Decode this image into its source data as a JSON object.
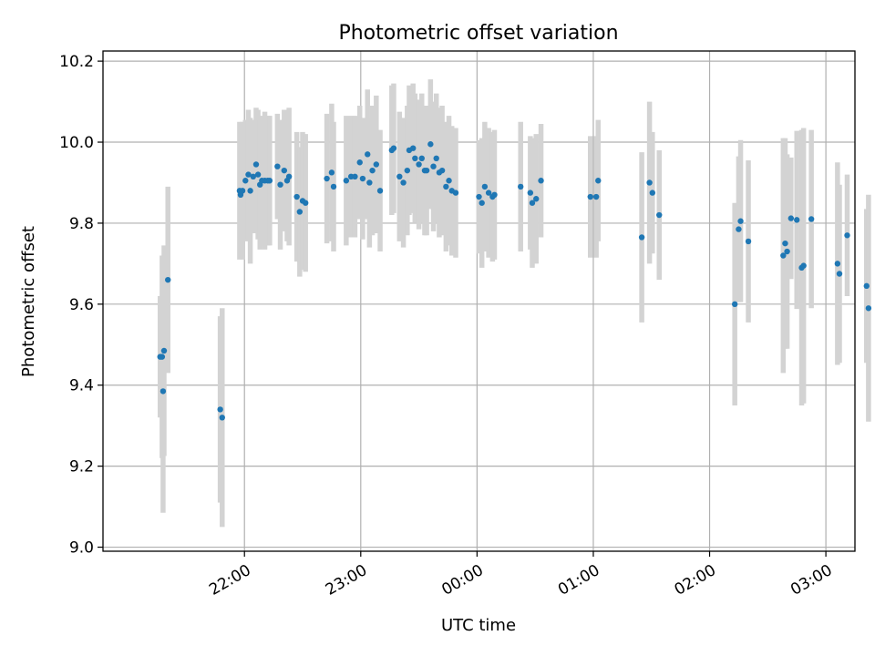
{
  "chart_data": {
    "type": "scatter",
    "title": "Photometric offset variation",
    "xlabel": "UTC time",
    "ylabel": "Photometric offset",
    "x_unit": "minutes after 21:00 UTC",
    "xlim": [
      -13,
      375
    ],
    "ylim": [
      8.99,
      10.225
    ],
    "yticks": [
      9.0,
      9.2,
      9.4,
      9.6,
      9.8,
      10.0,
      10.2
    ],
    "ytick_labels": [
      "9.0",
      "9.2",
      "9.4",
      "9.6",
      "9.8",
      "10.0",
      "10.2"
    ],
    "xticks": [
      60,
      120,
      180,
      240,
      300,
      360
    ],
    "xtick_labels": [
      "22:00",
      "23:00",
      "00:00",
      "01:00",
      "02:00",
      "03:00"
    ],
    "grid": true,
    "colors": {
      "points": "#1f77b4",
      "errorbars": "#d3d3d3",
      "grid": "#b0b0b0"
    },
    "series": [
      {
        "x": [
          16.5,
          18,
          18.5,
          20.5,
          17.5,
          47.5,
          48.5,
          57.5,
          58,
          59,
          60.5,
          62,
          63,
          64.5,
          66,
          67,
          68,
          69,
          70.5,
          72,
          73,
          77,
          78.5,
          80.5,
          82,
          83,
          87,
          88.5,
          90,
          91.5,
          102.5,
          105,
          106,
          112.5,
          115,
          117,
          119.5,
          121,
          123.5,
          124.5,
          126,
          128,
          130,
          136,
          137,
          140,
          142,
          144,
          145,
          147,
          148,
          150,
          151.5,
          153,
          154,
          156,
          157.5,
          159,
          160.5,
          162,
          164,
          165.5,
          167,
          169,
          181,
          182.5,
          184,
          186,
          188,
          189,
          202.5,
          207.5,
          208.5,
          210.5,
          213,
          238.5,
          241.5,
          242.5,
          265,
          269,
          270.5,
          274,
          313,
          315,
          316,
          320,
          366,
          367,
          371,
          381,
          382
        ],
        "y": [
          9.47,
          9.385,
          9.485,
          9.66,
          9.47,
          9.34,
          9.32,
          9.88,
          9.87,
          9.88,
          9.905,
          9.92,
          9.88,
          9.915,
          9.945,
          9.92,
          9.895,
          9.905,
          9.905,
          9.905,
          9.905,
          9.94,
          9.895,
          9.93,
          9.905,
          9.915,
          9.865,
          9.828,
          9.855,
          9.85,
          9.91,
          9.925,
          9.89,
          9.905,
          9.915,
          9.915,
          9.95,
          9.91,
          9.97,
          9.9,
          9.93,
          9.945,
          9.88,
          9.98,
          9.985,
          9.915,
          9.9,
          9.93,
          9.98,
          9.985,
          9.96,
          9.945,
          9.96,
          9.93,
          9.93,
          9.995,
          9.94,
          9.96,
          9.925,
          9.93,
          9.89,
          9.905,
          9.88,
          9.875,
          9.865,
          9.85,
          9.89,
          9.875,
          9.865,
          9.87,
          9.89,
          9.875,
          9.85,
          9.86,
          9.905,
          9.865,
          9.865,
          9.905,
          9.765,
          9.9,
          9.875,
          9.82,
          9.6,
          9.785,
          9.805,
          9.755,
          9.7,
          9.675,
          9.77,
          9.645,
          9.59
        ],
        "yerr": [
          0.15,
          0.3,
          0.26,
          0.23,
          0.25,
          0.23,
          0.27,
          0.17,
          0.15,
          0.17,
          0.15,
          0.16,
          0.18,
          0.14,
          0.14,
          0.16,
          0.16,
          0.16,
          0.17,
          0.16,
          0.16,
          0.13,
          0.16,
          0.15,
          0.15,
          0.17,
          0.16,
          0.16,
          0.17,
          0.17,
          0.16,
          0.17,
          0.16,
          0.16,
          0.15,
          0.15,
          0.14,
          0.15,
          0.16,
          0.16,
          0.16,
          0.17,
          0.15,
          0.16,
          0.16,
          0.16,
          0.16,
          0.16,
          0.16,
          0.16,
          0.16,
          0.16,
          0.16,
          0.16,
          0.16,
          0.16,
          0.16,
          0.16,
          0.16,
          0.16,
          0.16,
          0.16,
          0.16,
          0.16,
          0.14,
          0.16,
          0.16,
          0.16,
          0.16,
          0.16,
          0.16,
          0.14,
          0.16,
          0.16,
          0.14,
          0.15,
          0.15,
          0.15,
          0.21,
          0.2,
          0.15,
          0.16,
          0.25,
          0.18,
          0.2,
          0.2,
          0.25,
          0.22,
          0.15,
          0.19,
          0.28
        ]
      },
      {
        "x": [
          338,
          339,
          340,
          342,
          345,
          347.5,
          348.5,
          352.5
        ],
        "y": [
          9.72,
          9.75,
          9.73,
          9.812,
          9.808,
          9.69,
          9.695,
          9.81
        ],
        "yerr": [
          0.29,
          0.26,
          0.24,
          0.15,
          0.22,
          0.34,
          0.34,
          0.22
        ]
      }
    ]
  }
}
